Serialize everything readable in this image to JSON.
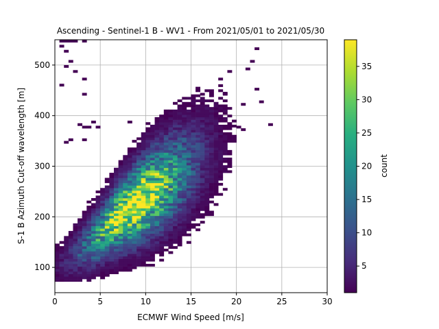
{
  "chart_data": {
    "type": "heatmap",
    "title": "Ascending - Sentinel-1 B - WV1 - From 2021/05/01 to 2021/05/30",
    "xlabel": "ECMWF Wind Speed [m/s]",
    "ylabel": "S-1 B Azimuth Cut-off wavelength [m]",
    "xlim": [
      0,
      30
    ],
    "ylim": [
      50,
      550
    ],
    "xticks": [
      "0",
      "5",
      "10",
      "15",
      "20",
      "25",
      "30"
    ],
    "yticks": [
      "100",
      "200",
      "300",
      "400",
      "500"
    ],
    "grid": true,
    "colormap": "viridis",
    "colorbar": {
      "label": "count",
      "range": [
        1,
        39
      ],
      "ticks": [
        "5",
        "10",
        "15",
        "20",
        "25",
        "30",
        "35"
      ]
    },
    "bins": {
      "x_width": 0.5,
      "y_width": 5
    },
    "density_model": {
      "ridge_points": [
        [
          0.5,
          105
        ],
        [
          3,
          135
        ],
        [
          5,
          165
        ],
        [
          7,
          200
        ],
        [
          9,
          225
        ],
        [
          12,
          265
        ],
        [
          15,
          305
        ],
        [
          18,
          340
        ],
        [
          21,
          385
        ]
      ],
      "peak": {
        "x": 9,
        "y": 225,
        "count": 38
      },
      "y_spread": [
        [
          0,
          25
        ],
        [
          5,
          35
        ],
        [
          10,
          50
        ],
        [
          15,
          60
        ],
        [
          20,
          70
        ]
      ],
      "x_extent": [
        0,
        23.5
      ],
      "y_extent": [
        72,
        545
      ]
    },
    "outliers": [
      [
        0.5,
        545
      ],
      [
        1.0,
        545
      ],
      [
        1.5,
        545
      ],
      [
        2.0,
        545
      ],
      [
        3.0,
        545
      ],
      [
        0.5,
        535
      ],
      [
        1.0,
        525
      ],
      [
        1.5,
        505
      ],
      [
        1.0,
        495
      ],
      [
        2.0,
        485
      ],
      [
        3.0,
        470
      ],
      [
        0.5,
        458
      ],
      [
        3.0,
        440
      ],
      [
        22.0,
        530
      ],
      [
        21.5,
        505
      ],
      [
        21.0,
        490
      ],
      [
        19.0,
        485
      ],
      [
        18.0,
        470
      ],
      [
        22.0,
        450
      ],
      [
        18.5,
        440
      ],
      [
        16.0,
        440
      ],
      [
        22.5,
        425
      ],
      [
        20.5,
        420
      ],
      [
        23.5,
        380
      ],
      [
        20.0,
        375
      ],
      [
        20.5,
        370
      ],
      [
        2.5,
        380
      ],
      [
        3.0,
        375
      ],
      [
        3.5,
        375
      ],
      [
        1.5,
        350
      ],
      [
        1.0,
        345
      ],
      [
        3.0,
        350
      ],
      [
        4.0,
        385
      ],
      [
        4.5,
        375
      ],
      [
        8.0,
        385
      ]
    ]
  }
}
